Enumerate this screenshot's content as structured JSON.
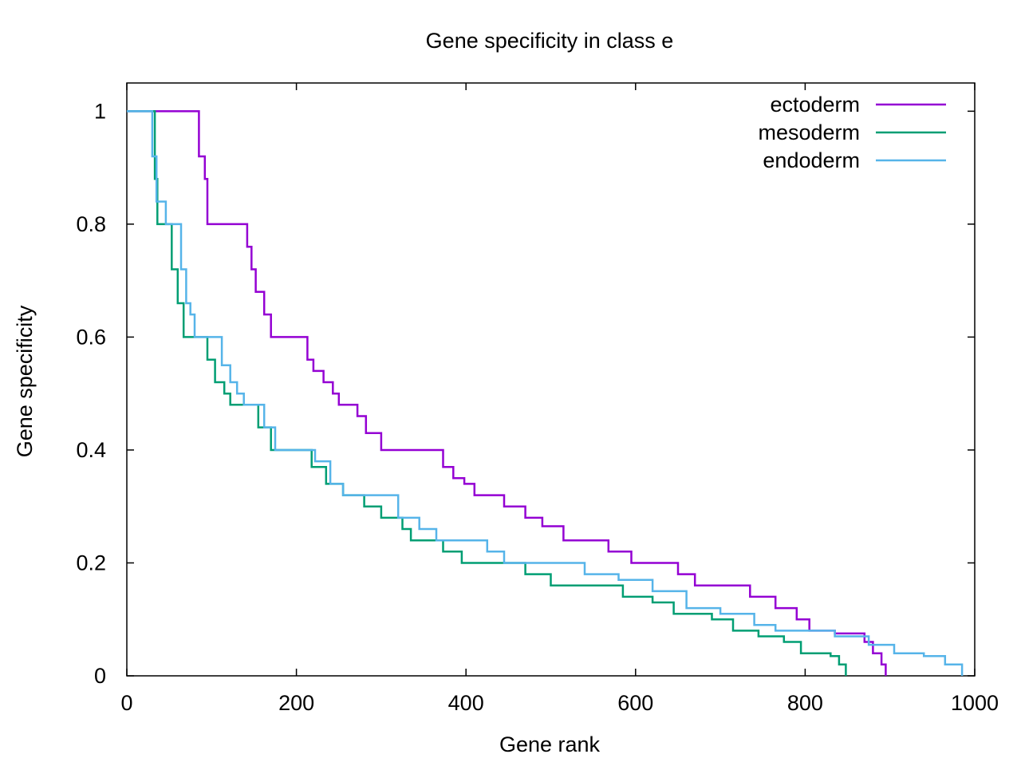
{
  "chart_data": {
    "type": "line",
    "title": "Gene specificity in class e",
    "xlabel": "Gene rank",
    "ylabel": "Gene specificity",
    "xlim": [
      0,
      1000
    ],
    "ylim": [
      0,
      1.05
    ],
    "xticks": [
      0,
      200,
      400,
      600,
      800,
      1000
    ],
    "xtick_labels": [
      "0",
      "200",
      "400",
      "600",
      "800",
      "1000"
    ],
    "yticks": [
      0,
      0.2,
      0.4,
      0.6,
      0.8,
      1
    ],
    "ytick_labels": [
      "0",
      "0.2",
      "0.4",
      "0.6",
      "0.8",
      "1"
    ],
    "grid": false,
    "legend_position": "top-right",
    "series": [
      {
        "name": "ectoderm",
        "color": "#9400d3",
        "points": [
          [
            0,
            1
          ],
          [
            80,
            1
          ],
          [
            85,
            0.92
          ],
          [
            92,
            0.88
          ],
          [
            95,
            0.8
          ],
          [
            137,
            0.8
          ],
          [
            142,
            0.76
          ],
          [
            147,
            0.72
          ],
          [
            152,
            0.68
          ],
          [
            162,
            0.64
          ],
          [
            170,
            0.6
          ],
          [
            208,
            0.6
          ],
          [
            213,
            0.56
          ],
          [
            220,
            0.54
          ],
          [
            232,
            0.52
          ],
          [
            243,
            0.5
          ],
          [
            250,
            0.48
          ],
          [
            268,
            0.48
          ],
          [
            272,
            0.46
          ],
          [
            282,
            0.43
          ],
          [
            300,
            0.4
          ],
          [
            365,
            0.4
          ],
          [
            373,
            0.37
          ],
          [
            385,
            0.35
          ],
          [
            398,
            0.34
          ],
          [
            410,
            0.32
          ],
          [
            435,
            0.32
          ],
          [
            445,
            0.3
          ],
          [
            470,
            0.28
          ],
          [
            490,
            0.265
          ],
          [
            515,
            0.24
          ],
          [
            552,
            0.24
          ],
          [
            568,
            0.22
          ],
          [
            595,
            0.2
          ],
          [
            628,
            0.2
          ],
          [
            650,
            0.18
          ],
          [
            670,
            0.16
          ],
          [
            710,
            0.16
          ],
          [
            735,
            0.14
          ],
          [
            765,
            0.12
          ],
          [
            790,
            0.1
          ],
          [
            805,
            0.08
          ],
          [
            835,
            0.075
          ],
          [
            870,
            0.06
          ],
          [
            880,
            0.04
          ],
          [
            890,
            0.02
          ],
          [
            895,
            0
          ]
        ]
      },
      {
        "name": "mesoderm",
        "color": "#009e73",
        "points": [
          [
            0,
            1
          ],
          [
            28,
            1
          ],
          [
            33,
            0.88
          ],
          [
            36,
            0.8
          ],
          [
            48,
            0.8
          ],
          [
            53,
            0.72
          ],
          [
            60,
            0.66
          ],
          [
            67,
            0.6
          ],
          [
            88,
            0.6
          ],
          [
            95,
            0.56
          ],
          [
            104,
            0.52
          ],
          [
            115,
            0.5
          ],
          [
            122,
            0.48
          ],
          [
            140,
            0.48
          ],
          [
            155,
            0.44
          ],
          [
            170,
            0.4
          ],
          [
            205,
            0.4
          ],
          [
            218,
            0.37
          ],
          [
            235,
            0.34
          ],
          [
            255,
            0.32
          ],
          [
            280,
            0.3
          ],
          [
            300,
            0.28
          ],
          [
            325,
            0.26
          ],
          [
            335,
            0.24
          ],
          [
            360,
            0.24
          ],
          [
            373,
            0.22
          ],
          [
            395,
            0.2
          ],
          [
            440,
            0.2
          ],
          [
            470,
            0.18
          ],
          [
            500,
            0.16
          ],
          [
            560,
            0.16
          ],
          [
            585,
            0.14
          ],
          [
            620,
            0.13
          ],
          [
            645,
            0.11
          ],
          [
            690,
            0.1
          ],
          [
            715,
            0.08
          ],
          [
            745,
            0.07
          ],
          [
            775,
            0.06
          ],
          [
            795,
            0.04
          ],
          [
            830,
            0.035
          ],
          [
            840,
            0.02
          ],
          [
            848,
            0
          ]
        ]
      },
      {
        "name": "endoderm",
        "color": "#56b4e9",
        "points": [
          [
            0,
            1
          ],
          [
            25,
            1
          ],
          [
            30,
            0.92
          ],
          [
            35,
            0.84
          ],
          [
            43,
            0.84
          ],
          [
            46,
            0.8
          ],
          [
            60,
            0.8
          ],
          [
            64,
            0.72
          ],
          [
            70,
            0.66
          ],
          [
            75,
            0.64
          ],
          [
            80,
            0.6
          ],
          [
            105,
            0.6
          ],
          [
            112,
            0.55
          ],
          [
            122,
            0.52
          ],
          [
            130,
            0.5
          ],
          [
            138,
            0.48
          ],
          [
            155,
            0.48
          ],
          [
            162,
            0.44
          ],
          [
            175,
            0.4
          ],
          [
            210,
            0.4
          ],
          [
            222,
            0.38
          ],
          [
            240,
            0.34
          ],
          [
            255,
            0.32
          ],
          [
            300,
            0.32
          ],
          [
            320,
            0.28
          ],
          [
            345,
            0.26
          ],
          [
            365,
            0.24
          ],
          [
            405,
            0.24
          ],
          [
            425,
            0.22
          ],
          [
            445,
            0.2
          ],
          [
            510,
            0.2
          ],
          [
            540,
            0.18
          ],
          [
            580,
            0.17
          ],
          [
            620,
            0.15
          ],
          [
            660,
            0.12
          ],
          [
            700,
            0.11
          ],
          [
            740,
            0.09
          ],
          [
            765,
            0.08
          ],
          [
            835,
            0.07
          ],
          [
            875,
            0.055
          ],
          [
            905,
            0.04
          ],
          [
            940,
            0.035
          ],
          [
            965,
            0.02
          ],
          [
            985,
            0
          ]
        ]
      }
    ]
  }
}
